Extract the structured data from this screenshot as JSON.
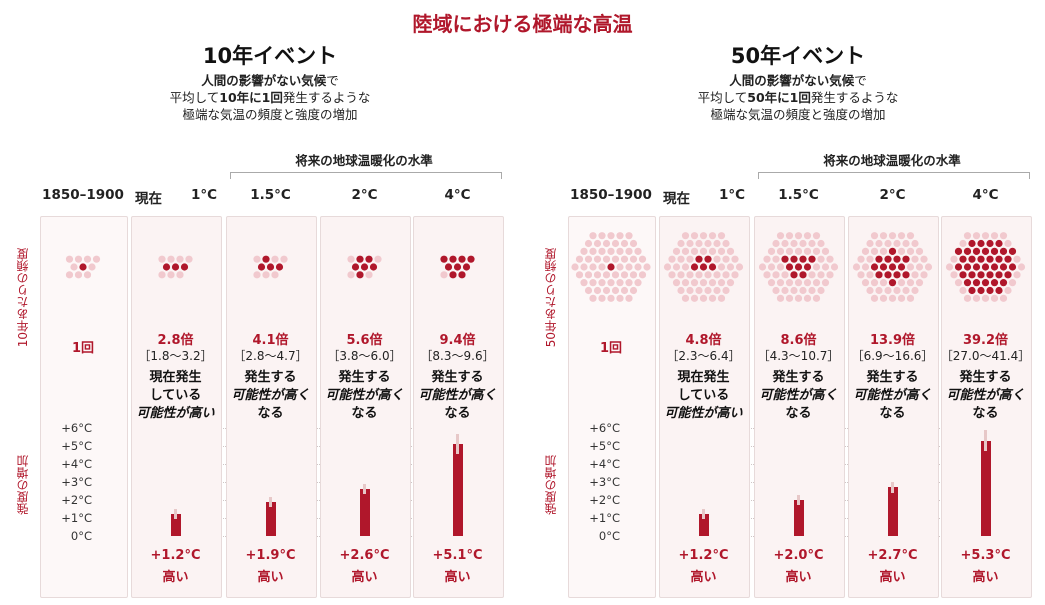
{
  "title": "陸域における極端な高温",
  "events": [
    {
      "title": "10年イベント",
      "desc_bold1": "人間の影響がない気候",
      "desc_end1": "で",
      "desc2_pre": "平均して",
      "desc2_bold": "10年に1回",
      "desc2_post": "発生するような",
      "desc3": "極端な気温の頻度と強度の増加",
      "future_label": "将来の地球温暖化の水準",
      "freq_label": "10年あたりの頻度",
      "intensity_label": "強度の増加",
      "baseline": {
        "header": "1850–1900",
        "freq": "1回"
      },
      "columns": [
        {
          "header_pre": "現在",
          "header": "1°C",
          "mult": "2.8倍",
          "range": "［1.8〜3.2］",
          "desc1": "現在発生",
          "desc2": "している",
          "desc3": "可能性が高い",
          "value": "+1.2°C",
          "level": "高い"
        },
        {
          "header": "1.5°C",
          "mult": "4.1倍",
          "range": "［2.8〜4.7］",
          "desc1": "発生する",
          "desc2": "可能性が高く",
          "desc3": "なる",
          "value": "+1.9°C",
          "level": "高い"
        },
        {
          "header": "2°C",
          "mult": "5.6倍",
          "range": "［3.8〜6.0］",
          "desc1": "発生する",
          "desc2": "可能性が高く",
          "desc3": "なる",
          "value": "+2.6°C",
          "level": "高い"
        },
        {
          "header": "4°C",
          "mult": "9.4倍",
          "range": "［8.3〜9.6］",
          "desc1": "発生する",
          "desc2": "可能性が高く",
          "desc3": "なる",
          "value": "+5.1°C",
          "level": "高い"
        }
      ],
      "yticks": [
        "+6°C",
        "+5°C",
        "+4°C",
        "+3°C",
        "+2°C",
        "+1°C",
        "0°C"
      ]
    },
    {
      "title": "50年イベント",
      "desc_bold1": "人間の影響がない気候",
      "desc_end1": "で",
      "desc2_pre": "平均して",
      "desc2_bold": "50年に1回",
      "desc2_post": "発生するような",
      "desc3": "極端な気温の頻度と強度の増加",
      "future_label": "将来の地球温暖化の水準",
      "freq_label": "50年あたりの頻度",
      "intensity_label": "強度の増加",
      "baseline": {
        "header": "1850–1900",
        "freq": "1回"
      },
      "columns": [
        {
          "header_pre": "現在",
          "header": "1°C",
          "mult": "4.8倍",
          "range": "［2.3〜6.4］",
          "desc1": "現在発生",
          "desc2": "している",
          "desc3": "可能性が高い",
          "value": "+1.2°C",
          "level": "高い"
        },
        {
          "header": "1.5°C",
          "mult": "8.6倍",
          "range": "［4.3〜10.7］",
          "desc1": "発生する",
          "desc2": "可能性が高く",
          "desc3": "なる",
          "value": "+2.0°C",
          "level": "高い"
        },
        {
          "header": "2°C",
          "mult": "13.9倍",
          "range": "［6.9〜16.6］",
          "desc1": "発生する",
          "desc2": "可能性が高く",
          "desc3": "なる",
          "value": "+2.7°C",
          "level": "高い"
        },
        {
          "header": "4°C",
          "mult": "39.2倍",
          "range": "［27.0〜41.4］",
          "desc1": "発生する",
          "desc2": "可能性が高く",
          "desc3": "なる",
          "value": "+5.3°C",
          "level": "高い"
        }
      ],
      "yticks": [
        "+6°C",
        "+5°C",
        "+4°C",
        "+3°C",
        "+2°C",
        "+1°C",
        "0°C"
      ]
    }
  ],
  "chart_data": [
    {
      "type": "bar",
      "title": "10年イベント",
      "categories": [
        "1°C",
        "1.5°C",
        "2°C",
        "4°C"
      ],
      "series": [
        {
          "values": [
            1.2,
            1.9,
            2.6,
            5.1
          ]
        }
      ],
      "frequency_multiplier": [
        2.8,
        4.1,
        5.6,
        9.4
      ],
      "ylim": [
        0,
        6
      ],
      "bar_color": "#b0172b"
    },
    {
      "type": "bar",
      "title": "50年イベント",
      "categories": [
        "1°C",
        "1.5°C",
        "2°C",
        "4°C"
      ],
      "series": [
        {
          "values": [
            1.2,
            2.0,
            2.7,
            5.3
          ]
        }
      ],
      "frequency_multiplier": [
        4.8,
        8.6,
        13.9,
        39.2
      ],
      "ylim": [
        0,
        6
      ],
      "bar_color": "#b0172b"
    }
  ],
  "colors": {
    "accent": "#b0172b",
    "dot_dark": "#b0172b",
    "dot_light": "#f1c9ce",
    "panel": "#fbf3f3"
  }
}
